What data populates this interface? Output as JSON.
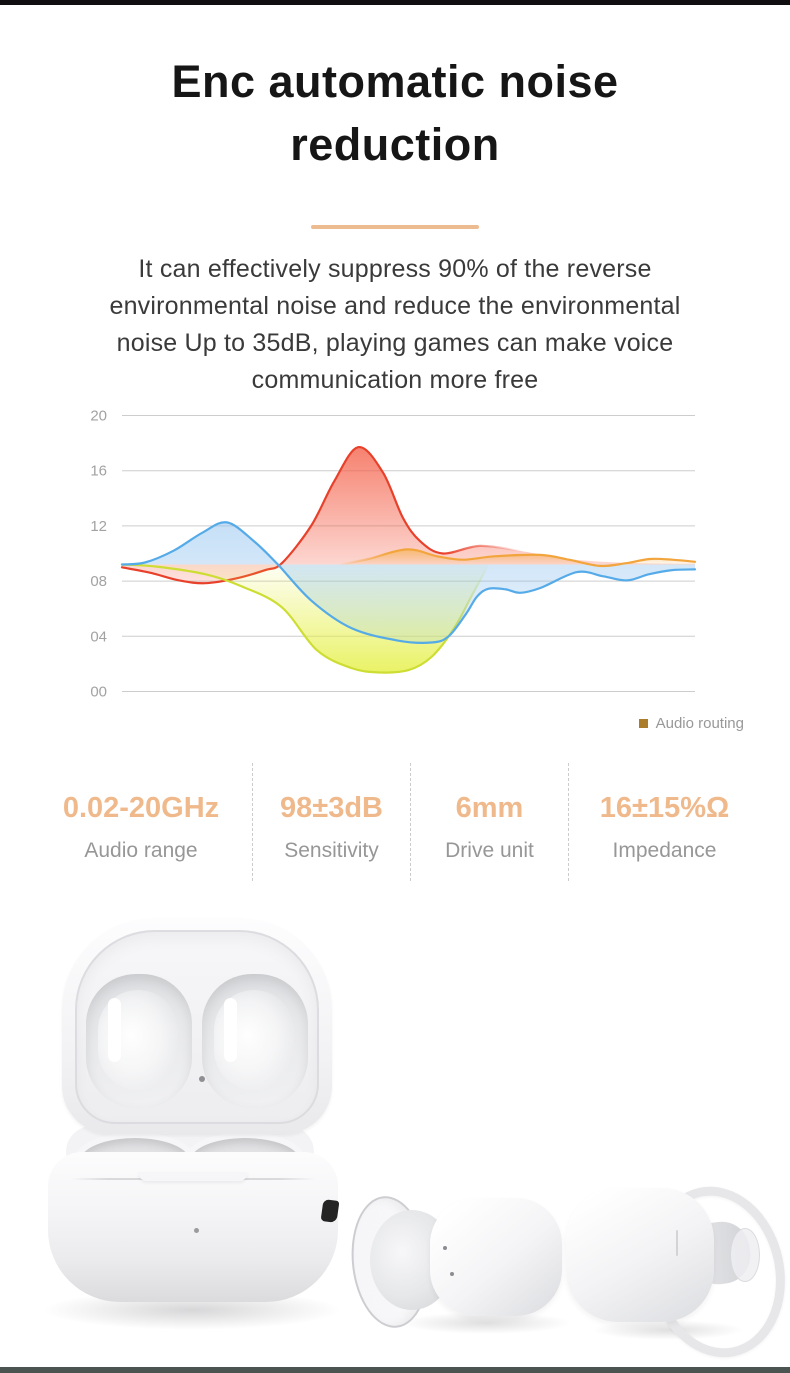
{
  "page": {
    "top_bar_color": "#110e12",
    "bottom_bar_color": "#4b5451"
  },
  "header": {
    "title_lines": [
      "Enc automatic noise",
      "reduction"
    ],
    "divider_color": "#ecbc90"
  },
  "description": {
    "lines": [
      "It can effectively suppress 90% of the reverse",
      "environmental noise and reduce the environmental",
      "noise Up to 35dB, playing games can make voice",
      "communication more free"
    ]
  },
  "chart_data": {
    "type": "area",
    "title": "",
    "xlabel": "",
    "ylabel": "",
    "ylim": [
      0,
      20
    ],
    "y_ticks": [
      "20",
      "16",
      "12",
      "08",
      "04",
      "00"
    ],
    "y_tick_values": [
      20,
      16,
      12,
      8,
      4,
      0
    ],
    "grid": true,
    "baseline": 9.2,
    "legend": {
      "label": "Audio routing",
      "swatch_color": "#ab7d2b",
      "position": "bottom-right"
    },
    "series": [
      {
        "name": "red-wave",
        "stroke": "#e8402a",
        "stroke_fade": {
          "type": "out",
          "range": [
            56,
            70
          ]
        },
        "fill": {
          "color": "#f4614a",
          "from_value": 17.8,
          "from_opacity": 0.8,
          "to_value": 7.0,
          "to_opacity": 0.12
        },
        "points": [
          [
            0,
            9.0
          ],
          [
            5,
            8.6
          ],
          [
            10,
            8.05
          ],
          [
            14.5,
            7.85
          ],
          [
            20,
            8.2
          ],
          [
            25,
            8.8
          ],
          [
            27.9,
            9.3
          ],
          [
            33,
            12.0
          ],
          [
            37,
            15.2
          ],
          [
            41.2,
            17.7
          ],
          [
            45.5,
            15.9
          ],
          [
            49,
            12.6
          ],
          [
            52,
            10.9
          ],
          [
            56,
            10.0
          ],
          [
            62.5,
            10.55
          ],
          [
            70,
            10.15
          ],
          [
            76,
            9.7
          ],
          [
            82,
            9.45
          ],
          [
            90,
            9.3
          ],
          [
            100,
            9.25
          ]
        ]
      },
      {
        "name": "yellow-wave",
        "stroke": "#cddd33",
        "stroke_fade": {
          "type": "out",
          "range": [
            58,
            64
          ]
        },
        "fill": {
          "color": "#e4ef3e",
          "from_value": 9.2,
          "from_opacity": 0.05,
          "to_value": 1.3,
          "to_opacity": 0.8
        },
        "points": [
          [
            0,
            9.2
          ],
          [
            6,
            9.05
          ],
          [
            14.5,
            8.5
          ],
          [
            21,
            7.6
          ],
          [
            27.9,
            6.1
          ],
          [
            34,
            3.0
          ],
          [
            40,
            1.7
          ],
          [
            45,
            1.38
          ],
          [
            50,
            1.55
          ],
          [
            54,
            2.5
          ],
          [
            58,
            4.6
          ],
          [
            61,
            6.9
          ],
          [
            64,
            9.2
          ]
        ]
      },
      {
        "name": "blue-wave",
        "stroke": "#55aae8",
        "fill": {
          "color": "#8cc0ee",
          "from_value": 12.3,
          "from_opacity": 0.5,
          "to_value": 3.5,
          "to_opacity": 0.18
        },
        "points": [
          [
            0,
            9.2
          ],
          [
            4,
            9.35
          ],
          [
            9,
            10.2
          ],
          [
            14,
            11.5
          ],
          [
            18.3,
            12.25
          ],
          [
            23,
            10.9
          ],
          [
            27.2,
            9.2
          ],
          [
            33,
            6.6
          ],
          [
            40,
            4.6
          ],
          [
            48,
            3.7
          ],
          [
            54,
            3.55
          ],
          [
            57,
            4.0
          ],
          [
            60,
            5.6
          ],
          [
            62,
            6.9
          ],
          [
            64,
            7.45
          ],
          [
            67,
            7.4
          ],
          [
            69.5,
            7.15
          ],
          [
            73,
            7.5
          ],
          [
            79.4,
            8.65
          ],
          [
            84,
            8.35
          ],
          [
            88.1,
            8.05
          ],
          [
            92,
            8.5
          ],
          [
            96,
            8.8
          ],
          [
            100,
            8.85
          ]
        ]
      },
      {
        "name": "orange-wave",
        "stroke": "#f2a53d",
        "stroke_fade": {
          "type": "in",
          "range": [
            38,
            47
          ]
        },
        "fill": {
          "color": "#f6b14e",
          "from_value": 10.3,
          "from_opacity": 0.7,
          "to_value": 9.2,
          "to_opacity": 0.08
        },
        "points": [
          [
            38,
            9.2
          ],
          [
            43,
            9.6
          ],
          [
            49.7,
            10.3
          ],
          [
            55,
            9.8
          ],
          [
            59.5,
            9.55
          ],
          [
            65,
            9.8
          ],
          [
            73,
            9.9
          ],
          [
            78,
            9.55
          ],
          [
            83.4,
            9.1
          ],
          [
            88,
            9.3
          ],
          [
            92.1,
            9.6
          ],
          [
            96,
            9.55
          ],
          [
            100,
            9.4
          ]
        ]
      }
    ]
  },
  "specs": {
    "accent_color": "#efb98c",
    "items": [
      {
        "value": "0.02-20GHz",
        "label": "Audio range"
      },
      {
        "value": "98±3dB",
        "label": "Sensitivity"
      },
      {
        "value": "6mm",
        "label": "Drive unit"
      },
      {
        "value": "16±15%Ω",
        "label": "Impedance"
      }
    ]
  }
}
